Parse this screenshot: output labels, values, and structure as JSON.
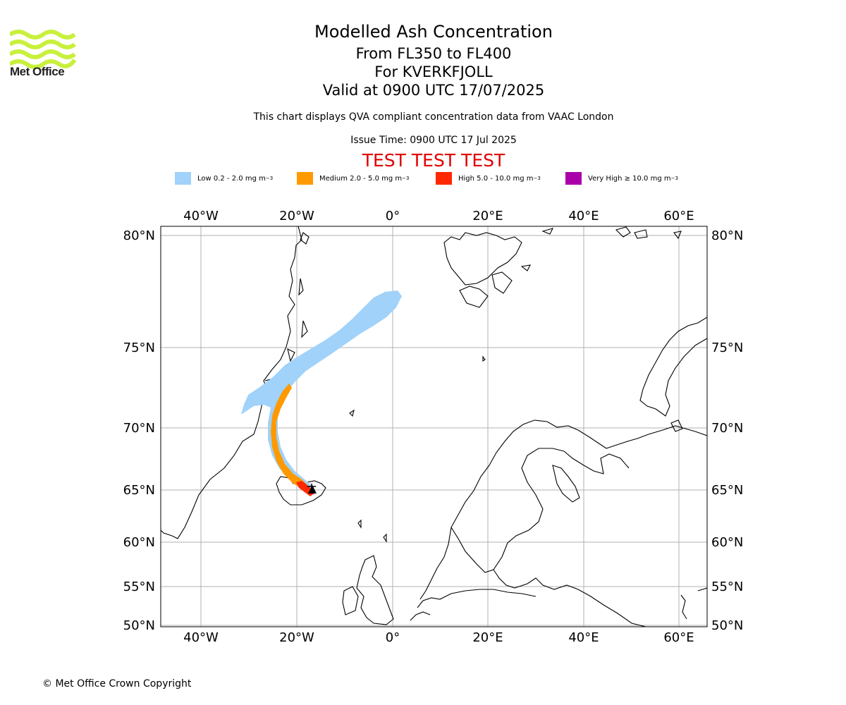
{
  "logo": {
    "text": "Met Office",
    "accent_color": "#c8f03c"
  },
  "titles": {
    "main": "Modelled Ash Concentration",
    "levels": "From FL350 to FL400",
    "volcano": "For KVERKFJOLL",
    "valid": "Valid at 0900 UTC 17/07/2025",
    "note": "This chart displays QVA compliant concentration data from VAAC London",
    "issue": "Issue Time: 0900 UTC 17 Jul 2025",
    "test": "TEST TEST TEST"
  },
  "legend": [
    {
      "label": "Low 0.2 - 2.0 mg m",
      "unit_exp": "−3",
      "color": "#a0d2fa"
    },
    {
      "label": "Medium 2.0 - 5.0 mg m",
      "unit_exp": "−3",
      "color": "#ff9900"
    },
    {
      "label": "High 5.0 - 10.0 mg m",
      "unit_exp": "−3",
      "color": "#ff2800"
    },
    {
      "label": "Very High ≥ 10.0 mg m",
      "unit_exp": "−3",
      "color": "#aa00aa"
    }
  ],
  "map": {
    "lon_labels": [
      "40°W",
      "20°W",
      "0°",
      "20°E",
      "40°E",
      "60°E"
    ],
    "lat_labels": [
      "80°N",
      "75°N",
      "70°N",
      "65°N",
      "60°N",
      "55°N",
      "50°N"
    ],
    "grid": true,
    "volcano_marker": "black triangle at Kverkfjoll, Iceland"
  },
  "copyright": "© Met Office Crown Copyright"
}
